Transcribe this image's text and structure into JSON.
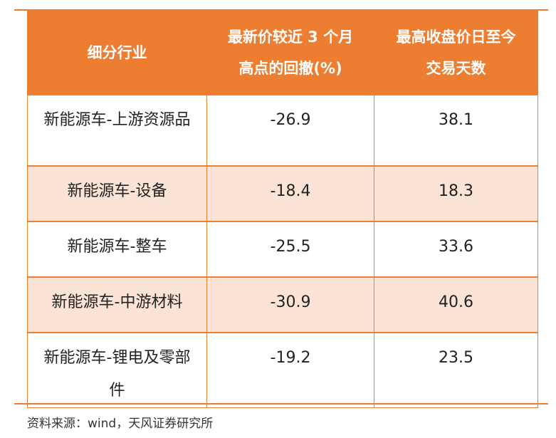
{
  "table": {
    "header": [
      [
        "细分行业"
      ],
      [
        "最新价较近 3 个月",
        "高点的回撤(%)"
      ],
      [
        "最高收盘价日至今",
        "交易天数"
      ]
    ],
    "rows": [
      [
        "新能源车-上游资源品",
        -26.9,
        38.1
      ],
      [
        "新能源车-设备",
        -18.4,
        18.3
      ],
      [
        "新能源车-整车",
        -25.5,
        33.6
      ],
      [
        "新能源车-中游材料",
        -30.9,
        40.6
      ],
      [
        "新能源车-锂电及零部件",
        -19.2,
        23.5
      ]
    ]
  },
  "source": "资料来源：wind，天风证券研究所"
}
